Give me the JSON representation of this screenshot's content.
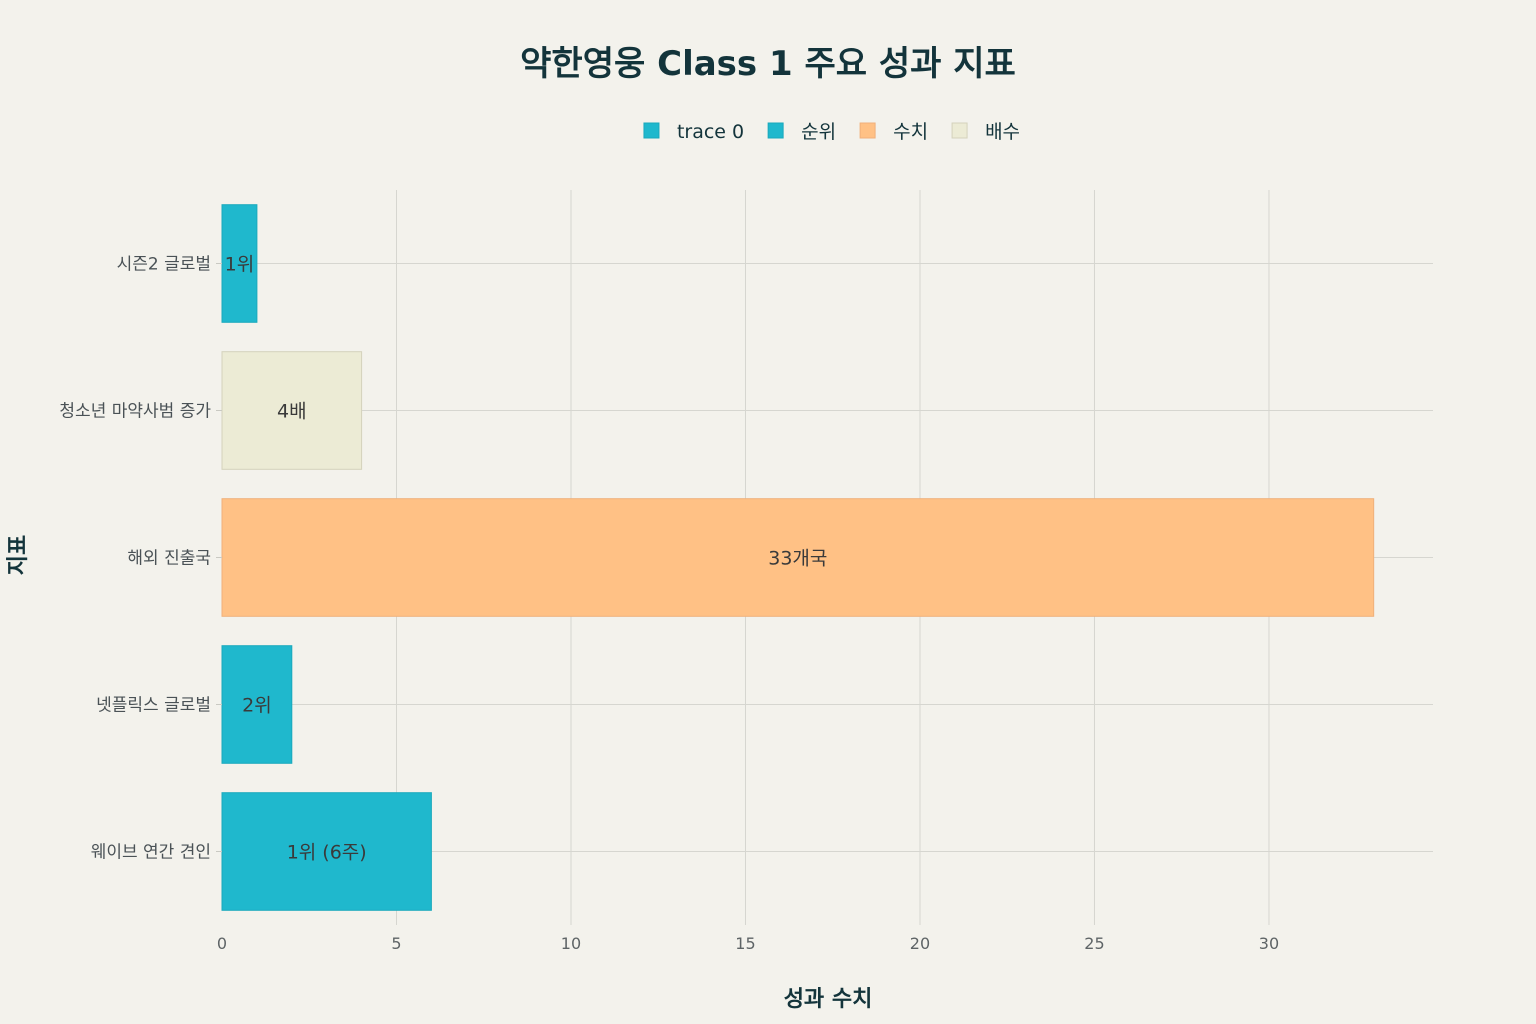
{
  "chart_data": {
    "type": "bar",
    "orientation": "horizontal",
    "title": "약한영웅 Class 1 주요 성과 지표",
    "xlabel": "성과 수치",
    "ylabel": "지표",
    "xlim": [
      0,
      34.7
    ],
    "xticks": [
      0,
      5,
      10,
      15,
      20,
      25,
      30
    ],
    "grid": true,
    "legend_position": "top-center",
    "legend": [
      {
        "name": "trace 0",
        "color": "#1fb8cd"
      },
      {
        "name": "순위",
        "color": "#1fb8cd"
      },
      {
        "name": "수치",
        "color": "#ffc185"
      },
      {
        "name": "배수",
        "color": "#ecebd5"
      }
    ],
    "bars": [
      {
        "category": "시즌2 글로벌",
        "value": 1,
        "label": "1위",
        "group": "순위",
        "color": "#1fb8cd"
      },
      {
        "category": "청소년 마약사범 증가",
        "value": 4,
        "label": "4배",
        "group": "배수",
        "color": "#ecebd5"
      },
      {
        "category": "해외 진출국",
        "value": 33,
        "label": "33개국",
        "group": "수치",
        "color": "#ffc185"
      },
      {
        "category": "넷플릭스 글로벌",
        "value": 2,
        "label": "2위",
        "group": "순위",
        "color": "#1fb8cd"
      },
      {
        "category": "웨이브 연간 견인",
        "value": 6,
        "label": "1위 (6주)",
        "group": "순위",
        "color": "#1fb8cd"
      }
    ]
  }
}
